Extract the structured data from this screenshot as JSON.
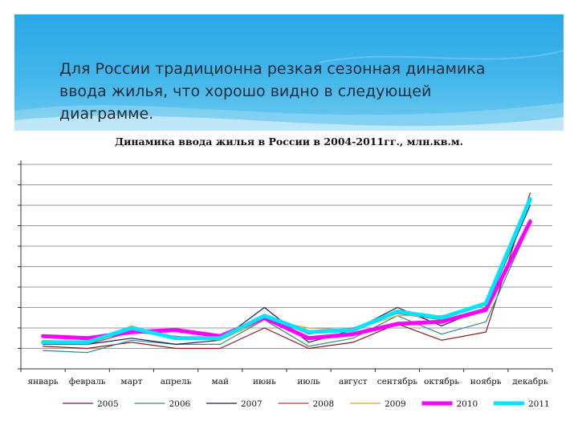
{
  "slide": {
    "text": "Для России традиционна резкая сезонная динамика ввода жилья, что хорошо видно в следующей диаграмме."
  },
  "colors": {
    "banner": "#2aa8e6",
    "grid": "#9a9a9a"
  },
  "chart_data": {
    "type": "line",
    "title": "Динамика ввода жилья в России в 2004-2011гг., млн.кв.м.",
    "xlabel": "",
    "ylabel": "",
    "ylim": [
      0,
      10
    ],
    "grid": true,
    "legend_position": "bottom",
    "categories": [
      "январь",
      "февраль",
      "март",
      "апрель",
      "май",
      "июнь",
      "июль",
      "август",
      "сентябрь",
      "октябрь",
      "ноябрь",
      "декабрь"
    ],
    "series": [
      {
        "name": "2005",
        "color": "#8b1a1a",
        "width": 1.2,
        "values": [
          1.1,
          1.0,
          1.3,
          1.0,
          1.0,
          2.0,
          1.0,
          1.3,
          2.2,
          1.4,
          1.8,
          8.6
        ]
      },
      {
        "name": "2006",
        "color": "#2f8c8c",
        "width": 1.2,
        "values": [
          0.9,
          0.8,
          1.4,
          1.2,
          1.2,
          2.4,
          1.1,
          1.5,
          2.6,
          1.7,
          2.3,
          7.1
        ]
      },
      {
        "name": "2007",
        "color": "#1a1a5a",
        "width": 1.2,
        "values": [
          1.2,
          1.2,
          1.5,
          1.2,
          1.4,
          3.0,
          1.3,
          1.9,
          3.0,
          2.1,
          3.0,
          8.0
        ]
      },
      {
        "name": "2008",
        "color": "#c0392b",
        "width": 1.2,
        "values": [
          1.3,
          1.2,
          1.8,
          1.6,
          1.4,
          2.6,
          1.7,
          2.0,
          2.7,
          2.4,
          2.8,
          7.3
        ]
      },
      {
        "name": "2009",
        "color": "#e0a020",
        "width": 1.2,
        "values": [
          1.4,
          1.3,
          2.1,
          1.5,
          1.4,
          2.4,
          2.0,
          1.9,
          2.6,
          2.6,
          3.1,
          8.2
        ]
      },
      {
        "name": "2010",
        "color": "#ff00ff",
        "width": 5,
        "values": [
          1.6,
          1.5,
          1.8,
          1.9,
          1.6,
          2.5,
          1.5,
          1.7,
          2.2,
          2.3,
          2.9,
          7.2
        ]
      },
      {
        "name": "2011",
        "color": "#00e5ff",
        "width": 5,
        "values": [
          1.3,
          1.3,
          2.0,
          1.5,
          1.5,
          2.6,
          1.8,
          1.9,
          2.8,
          2.5,
          3.2,
          8.3
        ]
      }
    ]
  }
}
